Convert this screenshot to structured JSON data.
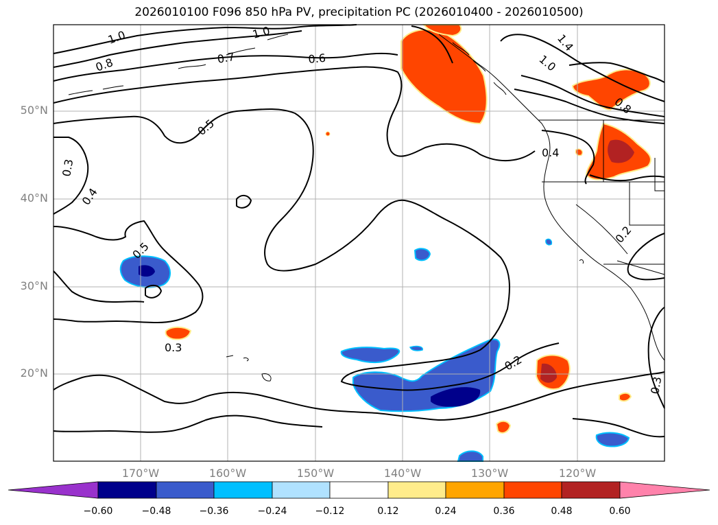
{
  "title": "2026010100 F096 850 hPa PV, precipitation PC (2026010400 - 2026010500)",
  "lat_ticks": [
    "50°N",
    "40°N",
    "30°N",
    "20°N"
  ],
  "lon_ticks": [
    "170°W",
    "160°W",
    "150°W",
    "140°W",
    "130°W",
    "120°W"
  ],
  "contour_labels": [
    "1.0",
    "1.0",
    "0.8",
    "0.7",
    "0.6",
    "0.5",
    "0.5",
    "0.4",
    "0.4",
    "0.3",
    "0.3",
    "0.3",
    "0.2",
    "0.2",
    "1.4",
    "1.0",
    "0.8"
  ],
  "colorbar": {
    "colors": [
      "#9932cc",
      "#00008b",
      "#3a5bcc",
      "#00bfff",
      "#b0e2ff",
      "#ffffff",
      "#ffec8b",
      "#ffa500",
      "#ff4500",
      "#b22222",
      "#ff82ab"
    ],
    "labels": [
      "−0.60",
      "−0.48",
      "−0.36",
      "−0.24",
      "−0.12",
      "0.12",
      "0.24",
      "0.36",
      "0.48",
      "0.60"
    ]
  }
}
